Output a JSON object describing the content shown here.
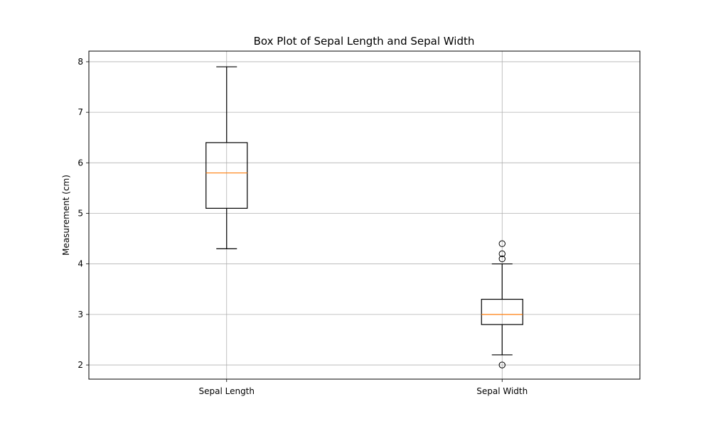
{
  "chart_data": {
    "type": "box",
    "title": "Box Plot of Sepal Length and Sepal Width",
    "ylabel": "Measurement (cm)",
    "xlabel": "",
    "ylim": [
      1.72,
      8.21
    ],
    "yticks": [
      2,
      3,
      4,
      5,
      6,
      7,
      8
    ],
    "grid": true,
    "median_color": "#ff7f0e",
    "categories": [
      "Sepal Length",
      "Sepal Width"
    ],
    "boxes": [
      {
        "category": "Sepal Length",
        "whisker_low": 4.3,
        "q1": 5.1,
        "median": 5.8,
        "q3": 6.4,
        "whisker_high": 7.9,
        "outliers": []
      },
      {
        "category": "Sepal Width",
        "whisker_low": 2.2,
        "q1": 2.8,
        "median": 3.0,
        "q3": 3.3,
        "whisker_high": 4.0,
        "outliers": [
          2.0,
          4.1,
          4.2,
          4.4
        ]
      }
    ]
  }
}
